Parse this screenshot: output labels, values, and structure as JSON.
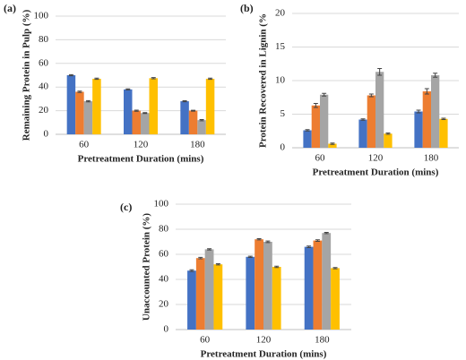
{
  "chart_data": [
    {
      "type": "bar",
      "panel": "(a)",
      "y_label": "Remaining Protein in Pulp (%)",
      "x_label": "Pretreatment Duration (mins)",
      "categories": [
        "60",
        "120",
        "180"
      ],
      "ylim": [
        0,
        100
      ],
      "yticks": [
        0,
        20,
        40,
        60,
        80,
        100
      ],
      "grid": true,
      "series": [
        {
          "color": "#4472c4",
          "values": [
            50,
            38,
            28
          ],
          "errors": [
            0.5,
            0.4,
            0.4
          ]
        },
        {
          "color": "#ed7d31",
          "values": [
            36,
            20,
            20
          ],
          "errors": [
            0.6,
            0.5,
            0.4
          ]
        },
        {
          "color": "#a5a5a5",
          "values": [
            28,
            18,
            12
          ],
          "errors": [
            0.5,
            0.4,
            0.5
          ]
        },
        {
          "color": "#ffc000",
          "values": [
            47,
            47.5,
            47
          ],
          "errors": [
            0.5,
            0.5,
            0.5
          ]
        }
      ]
    },
    {
      "type": "bar",
      "panel": "(b)",
      "y_label": "Protein Recovered in Lignin (%",
      "x_label": "Pretreatment Duration (mins)",
      "categories": [
        "60",
        "120",
        "180"
      ],
      "ylim": [
        0,
        20
      ],
      "yticks": [
        0,
        5,
        10,
        15,
        20
      ],
      "grid": true,
      "series": [
        {
          "color": "#4472c4",
          "values": [
            2.6,
            4.2,
            5.4
          ],
          "errors": [
            0.1,
            0.1,
            0.2
          ]
        },
        {
          "color": "#ed7d31",
          "values": [
            6.3,
            7.8,
            8.4
          ],
          "errors": [
            0.3,
            0.2,
            0.4
          ]
        },
        {
          "color": "#a5a5a5",
          "values": [
            7.9,
            11.3,
            10.8
          ],
          "errors": [
            0.2,
            0.5,
            0.3
          ]
        },
        {
          "color": "#ffc000",
          "values": [
            0.6,
            2.1,
            4.3
          ],
          "errors": [
            0.1,
            0.1,
            0.1
          ]
        }
      ]
    },
    {
      "type": "bar",
      "panel": "(c)",
      "y_label": "Unaccounted Protein (%)",
      "x_label": "Pretreatment Duration (mins)",
      "categories": [
        "60",
        "120",
        "180"
      ],
      "ylim": [
        0,
        100
      ],
      "yticks": [
        0,
        20,
        40,
        60,
        80,
        100
      ],
      "grid": true,
      "series": [
        {
          "color": "#4472c4",
          "values": [
            47,
            58,
            66
          ],
          "errors": [
            0.7,
            0.5,
            0.6
          ]
        },
        {
          "color": "#ed7d31",
          "values": [
            57,
            72,
            71
          ],
          "errors": [
            0.6,
            0.5,
            0.6
          ]
        },
        {
          "color": "#a5a5a5",
          "values": [
            64,
            70,
            77
          ],
          "errors": [
            0.5,
            0.6,
            0.5
          ]
        },
        {
          "color": "#ffc000",
          "values": [
            52,
            50,
            49
          ],
          "errors": [
            0.5,
            0.5,
            0.5
          ]
        }
      ]
    }
  ]
}
